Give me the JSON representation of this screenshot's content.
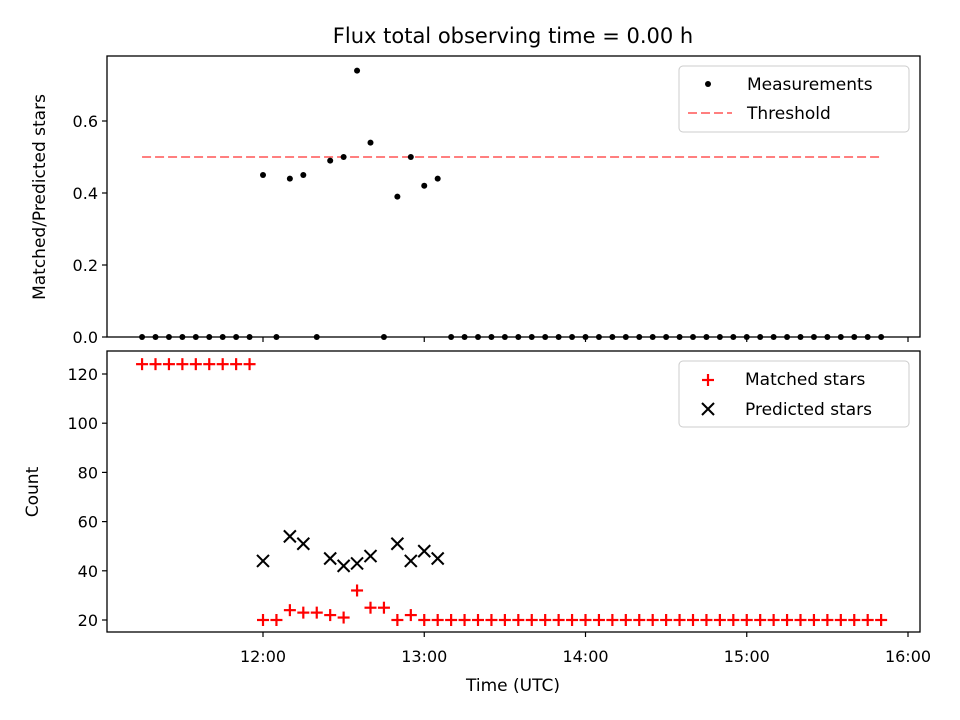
{
  "title": "Flux total observing time = 0.00 h",
  "colors": {
    "measurement": "#000000",
    "threshold": "#ff7f7f",
    "matched": "#ff0000",
    "predicted": "#000000"
  },
  "chart_data": [
    {
      "type": "scatter",
      "ylabel": "Matched/Predicted stars",
      "ylim": [
        0,
        0.78
      ],
      "yticks": [
        "0.0",
        "0.2",
        "0.4",
        "0.6"
      ],
      "ytick_values": [
        0,
        0.2,
        0.4,
        0.6
      ],
      "legend": {
        "placement": "upper right",
        "entries": [
          "Measurements",
          "Threshold"
        ]
      },
      "threshold": {
        "name": "Threshold",
        "y": 0.5,
        "x_start": "11:15",
        "x_end": "15:50"
      },
      "series": [
        {
          "name": "Measurements",
          "x": [
            "11:15",
            "11:20",
            "11:25",
            "11:30",
            "11:35",
            "11:40",
            "11:45",
            "11:50",
            "11:55",
            "12:00",
            "12:05",
            "12:10",
            "12:15",
            "12:20",
            "12:25",
            "12:30",
            "12:35",
            "12:40",
            "12:45",
            "12:50",
            "12:55",
            "13:00",
            "13:05",
            "13:10",
            "13:15",
            "13:20",
            "13:25",
            "13:30",
            "13:35",
            "13:40",
            "13:45",
            "13:50",
            "13:55",
            "14:00",
            "14:05",
            "14:10",
            "14:15",
            "14:20",
            "14:25",
            "14:30",
            "14:35",
            "14:40",
            "14:45",
            "14:50",
            "14:55",
            "15:00",
            "15:05",
            "15:10",
            "15:15",
            "15:20",
            "15:25",
            "15:30",
            "15:35",
            "15:40",
            "15:45",
            "15:50"
          ],
          "y": [
            0,
            0,
            0,
            0,
            0,
            0,
            0,
            0,
            0,
            0.45,
            0,
            0.44,
            0.45,
            0,
            0.49,
            0.5,
            0.74,
            0.54,
            0,
            0.39,
            0.5,
            0.42,
            0.44,
            0,
            0,
            0,
            0,
            0,
            0,
            0,
            0,
            0,
            0,
            0,
            0,
            0,
            0,
            0,
            0,
            0,
            0,
            0,
            0,
            0,
            0,
            0,
            0,
            0,
            0,
            0,
            0,
            0,
            0,
            0,
            0,
            0
          ]
        }
      ]
    },
    {
      "type": "scatter",
      "xlabel": "Time (UTC)",
      "ylabel": "Count",
      "ylim": [
        15,
        130
      ],
      "yticks": [
        "20",
        "40",
        "60",
        "80",
        "100",
        "120"
      ],
      "ytick_values": [
        20,
        40,
        60,
        80,
        100,
        120
      ],
      "xlim": [
        "11:00",
        "16:00"
      ],
      "xticks": [
        "12:00",
        "13:00",
        "14:00",
        "15:00",
        "16:00"
      ],
      "legend": {
        "placement": "upper right",
        "entries": [
          "Matched stars",
          "Predicted stars"
        ]
      },
      "series": [
        {
          "name": "Matched stars",
          "x": [
            "11:15",
            "11:20",
            "11:25",
            "11:30",
            "11:35",
            "11:40",
            "11:45",
            "11:50",
            "11:55",
            "12:00",
            "12:05",
            "12:10",
            "12:15",
            "12:20",
            "12:25",
            "12:30",
            "12:35",
            "12:40",
            "12:45",
            "12:50",
            "12:55",
            "13:00",
            "13:05",
            "13:10",
            "13:15",
            "13:20",
            "13:25",
            "13:30",
            "13:35",
            "13:40",
            "13:45",
            "13:50",
            "13:55",
            "14:00",
            "14:05",
            "14:10",
            "14:15",
            "14:20",
            "14:25",
            "14:30",
            "14:35",
            "14:40",
            "14:45",
            "14:50",
            "14:55",
            "15:00",
            "15:05",
            "15:10",
            "15:15",
            "15:20",
            "15:25",
            "15:30",
            "15:35",
            "15:40",
            "15:45",
            "15:50"
          ],
          "y": [
            124,
            124,
            124,
            124,
            124,
            124,
            124,
            124,
            124,
            20,
            20,
            24,
            23,
            23,
            22,
            21,
            32,
            25,
            25,
            20,
            22,
            20,
            20,
            20,
            20,
            20,
            20,
            20,
            20,
            20,
            20,
            20,
            20,
            20,
            20,
            20,
            20,
            20,
            20,
            20,
            20,
            20,
            20,
            20,
            20,
            20,
            20,
            20,
            20,
            20,
            20,
            20,
            20,
            20,
            20,
            20
          ]
        },
        {
          "name": "Predicted stars",
          "x": [
            "12:00",
            "12:10",
            "12:15",
            "12:25",
            "12:30",
            "12:35",
            "12:40",
            "12:50",
            "12:55",
            "13:00",
            "13:05"
          ],
          "y": [
            44,
            54,
            51,
            45,
            42,
            43,
            46,
            51,
            44,
            48,
            45
          ]
        }
      ]
    }
  ]
}
